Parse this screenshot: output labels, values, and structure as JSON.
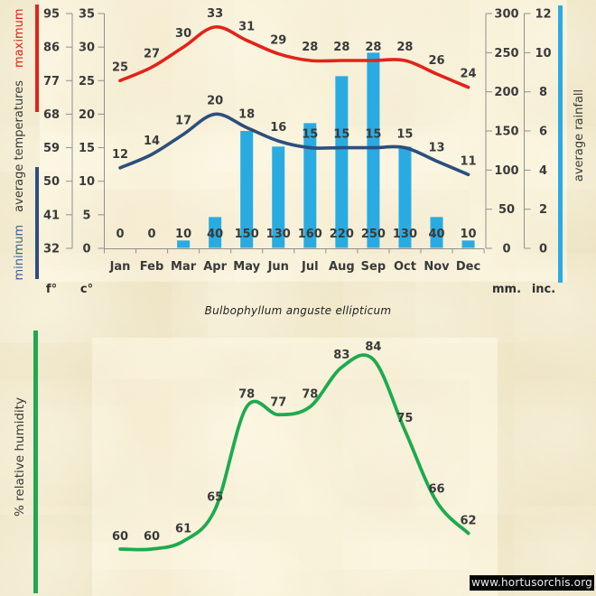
{
  "title": "Bulbophyllum anguste ellipticum",
  "watermark": "www.hortusorchis.org",
  "colors": {
    "background": "#f0e7c9",
    "panel": "#f9f2da",
    "max_temp_red": "#e2231a",
    "min_temp_navy": "#2d4e7e",
    "rainfall_cyan": "#29abe2",
    "humidity_green": "#1eaa50",
    "axis_gray": "#8f8f8f",
    "label_text": "#3a3a3a"
  },
  "chart_data": [
    {
      "type": "line",
      "categories": [
        "Jan",
        "Feb",
        "Mar",
        "Apr",
        "May",
        "Jun",
        "Jul",
        "Aug",
        "Sep",
        "Oct",
        "Nov",
        "Dec"
      ],
      "series": [
        {
          "name": "maximum temperature",
          "kind": "line",
          "axis": "c",
          "color": "#e2231a",
          "values": [
            25,
            27,
            30,
            33,
            31,
            29,
            28,
            28,
            28,
            28,
            26,
            24
          ]
        },
        {
          "name": "minimum temperature",
          "kind": "line",
          "axis": "c",
          "color": "#2d4e7e",
          "values": [
            12,
            14,
            17,
            20,
            18,
            16,
            15,
            15,
            15,
            15,
            13,
            11
          ]
        },
        {
          "name": "average rainfall",
          "kind": "bar",
          "axis": "mm",
          "color": "#29abe2",
          "values": [
            0,
            0,
            10,
            40,
            150,
            130,
            160,
            220,
            250,
            130,
            40,
            10
          ]
        }
      ],
      "axes": {
        "f": {
          "label": "f°",
          "ticks": [
            95,
            86,
            77,
            68,
            59,
            50,
            41,
            32
          ]
        },
        "c": {
          "label": "c°",
          "ticks": [
            35,
            30,
            25,
            20,
            15,
            10,
            5,
            0
          ],
          "range": [
            0,
            35
          ]
        },
        "mm": {
          "label": "mm.",
          "ticks": [
            300,
            250,
            200,
            150,
            100,
            50,
            0
          ],
          "range": [
            0,
            300
          ]
        },
        "inc": {
          "label": "inc.",
          "ticks": [
            12,
            10,
            8,
            6,
            4,
            2,
            0
          ]
        }
      },
      "left_legend": {
        "min": "minimum",
        "mid": "average  temperatures",
        "max": "maximum"
      },
      "right_legend": "average rainfall",
      "grid": false,
      "legend_position": "rotated side labels"
    },
    {
      "type": "line",
      "categories": [
        "Jan",
        "Feb",
        "Mar",
        "Apr",
        "May",
        "Jun",
        "Jul",
        "Aug",
        "Sep",
        "Oct",
        "Nov",
        "Dec"
      ],
      "series": [
        {
          "name": "% relative humidity",
          "kind": "line",
          "color": "#1eaa50",
          "values": [
            60,
            60,
            61,
            65,
            78,
            77,
            78,
            83,
            84,
            75,
            66,
            62
          ]
        }
      ],
      "ylabel": "% relative humidity",
      "ylim": [
        60,
        84
      ],
      "grid": false
    }
  ]
}
